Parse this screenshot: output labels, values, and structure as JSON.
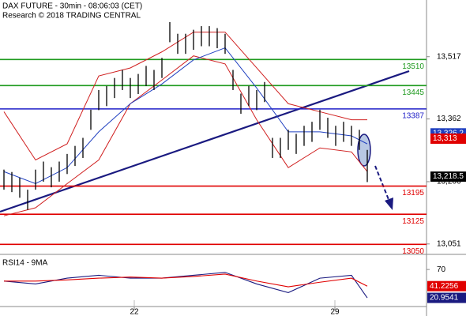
{
  "chart_data": {
    "type": "ohlc",
    "title": "DAX FUTURE - 30min - 08:06:03 (CET)",
    "subtitle": "Research © 2018 TRADING CENTRAL",
    "xlim": [
      -0.5,
      53.5
    ],
    "xticks": [
      {
        "value": 16.5,
        "label": "22"
      },
      {
        "value": 41.9,
        "label": "29"
      }
    ],
    "ylim": [
      13029,
      13658
    ],
    "yticks": [
      {
        "value": 13517,
        "label": "13,517"
      },
      {
        "value": 13362,
        "label": "13,362"
      },
      {
        "value": 13206,
        "label": "13,206"
      },
      {
        "value": 13051,
        "label": "13,051"
      }
    ],
    "high": [
      13236,
      13230,
      13216,
      13186,
      13236,
      13256,
      13242,
      13256,
      13275,
      13295,
      13315,
      13385,
      13434,
      13444,
      13464,
      13484,
      13464,
      13474,
      13494,
      13484,
      13514,
      13603,
      13574,
      13574,
      13584,
      13593,
      13593,
      13588,
      13574,
      13484,
      13425,
      13444,
      13434,
      13454,
      13315,
      13315,
      13335,
      13325,
      13345,
      13355,
      13385,
      13365,
      13345,
      13355,
      13345,
      13335,
      13285
    ],
    "low": [
      13186,
      13180,
      13166,
      13136,
      13186,
      13206,
      13192,
      13206,
      13225,
      13245,
      13265,
      13335,
      13384,
      13394,
      13414,
      13434,
      13414,
      13424,
      13444,
      13434,
      13464,
      13553,
      13524,
      13524,
      13534,
      13543,
      13543,
      13538,
      13524,
      13434,
      13375,
      13394,
      13384,
      13404,
      13265,
      13265,
      13285,
      13275,
      13295,
      13305,
      13335,
      13315,
      13295,
      13305,
      13295,
      13285,
      13205
    ],
    "bands": {
      "x": [
        0,
        4,
        8,
        12,
        16,
        20,
        24,
        28,
        32,
        36,
        40,
        44,
        46
      ],
      "upper": [
        13380,
        13260,
        13300,
        13469,
        13489,
        13529,
        13578,
        13578,
        13489,
        13400,
        13380,
        13360,
        13360
      ],
      "mid": [
        13231,
        13201,
        13241,
        13330,
        13400,
        13449,
        13509,
        13539,
        13439,
        13330,
        13330,
        13320,
        13300
      ],
      "lower": [
        13121,
        13141,
        13201,
        13260,
        13400,
        13459,
        13519,
        13499,
        13360,
        13241,
        13290,
        13280,
        13231
      ]
    },
    "levels": [
      {
        "value": 13510,
        "color": "#1e9a1e"
      },
      {
        "value": 13445,
        "color": "#1e9a1e"
      },
      {
        "value": 13387,
        "color": "#2020c8"
      },
      {
        "value": 13195,
        "color": "#e00000"
      },
      {
        "value": 13125,
        "color": "#e00000"
      },
      {
        "value": 13050,
        "color": "#e00000"
      }
    ],
    "markers": [
      {
        "value": 13326.2,
        "label": "13,326.2",
        "color": "#2040c0"
      },
      {
        "value": 13313,
        "label": "13,313",
        "color": "#e00000"
      },
      {
        "value": 13218.5,
        "label": "13,218.5",
        "color": "#000000"
      }
    ],
    "rsi": {
      "title": "RSI14 - 9MA",
      "ylim": [
        6,
        92
      ],
      "yticks": [
        70
      ],
      "series": [
        {
          "color": "#1a1a80",
          "values": [
            50,
            45,
            55,
            60,
            55,
            55,
            60,
            65,
            45,
            30,
            55,
            60,
            21
          ]
        },
        {
          "color": "#e00000",
          "values": [
            50,
            50,
            52,
            55,
            57,
            55,
            58,
            62,
            50,
            40,
            48,
            55,
            41.2
          ]
        }
      ],
      "markers": [
        {
          "value": 41.2256,
          "color": "#e00000"
        },
        {
          "value": 20.9541,
          "color": "#1a1a80"
        }
      ]
    }
  }
}
